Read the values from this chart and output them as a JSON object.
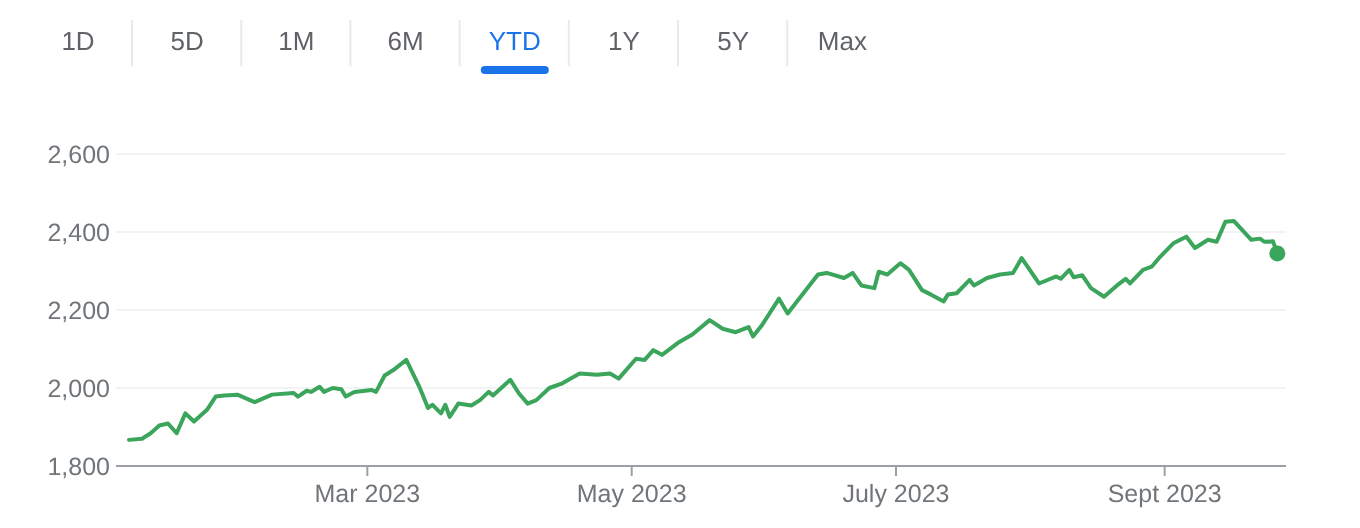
{
  "chart_data": {
    "type": "line",
    "annotations": [
      "1D",
      "5D",
      "1M",
      "6M",
      "YTD",
      "1Y",
      "5Y",
      "Max"
    ],
    "x": [
      "2023-01-05",
      "2023-01-08",
      "2023-01-10",
      "2023-01-12",
      "2023-01-14",
      "2023-01-16",
      "2023-01-18",
      "2023-01-20",
      "2023-01-23",
      "2023-01-25",
      "2023-01-27",
      "2023-01-30",
      "2023-02-03",
      "2023-02-07",
      "2023-02-12",
      "2023-02-13",
      "2023-02-15",
      "2023-02-16",
      "2023-02-18",
      "2023-02-19",
      "2023-02-21",
      "2023-02-23",
      "2023-02-24",
      "2023-02-26",
      "2023-03-02",
      "2023-03-03",
      "2023-03-05",
      "2023-03-07",
      "2023-03-10",
      "2023-03-13",
      "2023-03-15",
      "2023-03-16",
      "2023-03-18",
      "2023-03-19",
      "2023-03-20",
      "2023-03-22",
      "2023-03-25",
      "2023-03-27",
      "2023-03-29",
      "2023-03-30",
      "2023-04-03",
      "2023-04-05",
      "2023-04-07",
      "2023-04-09",
      "2023-04-12",
      "2023-04-15",
      "2023-04-19",
      "2023-04-23",
      "2023-04-26",
      "2023-04-28",
      "2023-05-02",
      "2023-05-04",
      "2023-05-06",
      "2023-05-08",
      "2023-05-12",
      "2023-05-15",
      "2023-05-19",
      "2023-05-22",
      "2023-05-25",
      "2023-05-28",
      "2023-05-29",
      "2023-05-31",
      "2023-06-04",
      "2023-06-06",
      "2023-06-09",
      "2023-06-13",
      "2023-06-15",
      "2023-06-19",
      "2023-06-21",
      "2023-06-23",
      "2023-06-26",
      "2023-06-27",
      "2023-06-29",
      "2023-07-02",
      "2023-07-04",
      "2023-07-07",
      "2023-07-09",
      "2023-07-12",
      "2023-07-13",
      "2023-07-15",
      "2023-07-18",
      "2023-07-19",
      "2023-07-22",
      "2023-07-25",
      "2023-07-28",
      "2023-07-30",
      "2023-08-03",
      "2023-08-07",
      "2023-08-08",
      "2023-08-10",
      "2023-08-11",
      "2023-08-13",
      "2023-08-15",
      "2023-08-18",
      "2023-08-21",
      "2023-08-23",
      "2023-08-24",
      "2023-08-27",
      "2023-08-29",
      "2023-08-31",
      "2023-09-03",
      "2023-09-06",
      "2023-09-08",
      "2023-09-11",
      "2023-09-13",
      "2023-09-15",
      "2023-09-17",
      "2023-09-21",
      "2023-09-23",
      "2023-09-24",
      "2023-09-26",
      "2023-09-27"
    ],
    "series": [
      {
        "color": "#3ba55c",
        "values": [
          1867,
          1870,
          1884,
          1904,
          1909,
          1884,
          1935,
          1914,
          1944,
          1978,
          1981,
          1983,
          1964,
          1983,
          1987,
          1978,
          1993,
          1990,
          2003,
          1990,
          2000,
          1997,
          1978,
          1990,
          1995,
          1990,
          2032,
          2046,
          2072,
          2003,
          1949,
          1957,
          1935,
          1957,
          1926,
          1960,
          1955,
          1969,
          1990,
          1981,
          2021,
          1986,
          1960,
          1969,
          2000,
          2012,
          2037,
          2034,
          2037,
          2024,
          2075,
          2072,
          2097,
          2085,
          2118,
          2137,
          2174,
          2152,
          2143,
          2156,
          2132,
          2160,
          2229,
          2191,
          2234,
          2291,
          2295,
          2282,
          2295,
          2263,
          2256,
          2298,
          2291,
          2320,
          2303,
          2251,
          2240,
          2222,
          2240,
          2243,
          2277,
          2263,
          2282,
          2291,
          2295,
          2333,
          2268,
          2286,
          2280,
          2303,
          2284,
          2289,
          2256,
          2234,
          2263,
          2280,
          2268,
          2303,
          2311,
          2337,
          2371,
          2388,
          2359,
          2380,
          2375,
          2426,
          2428,
          2380,
          2383,
          2375,
          2376,
          2345
        ]
      }
    ],
    "xlim": [
      "2023-01-02",
      "2023-09-29"
    ],
    "xticks": [
      {
        "value": "2023-03-01",
        "label": "Mar 2023"
      },
      {
        "value": "2023-05-01",
        "label": "May 2023"
      },
      {
        "value": "2023-07-01",
        "label": "July 2023"
      },
      {
        "value": "2023-09-01",
        "label": "Sept 2023"
      }
    ],
    "ylim": [
      1800,
      2600
    ],
    "yticks": [
      {
        "value": 1800,
        "label": "1,800"
      },
      {
        "value": 2000,
        "label": "2,000"
      },
      {
        "value": 2200,
        "label": "2,200"
      },
      {
        "value": 2400,
        "label": "2,400"
      },
      {
        "value": 2600,
        "label": "2,600"
      }
    ],
    "grid": "y",
    "line_style": "solid"
  }
}
